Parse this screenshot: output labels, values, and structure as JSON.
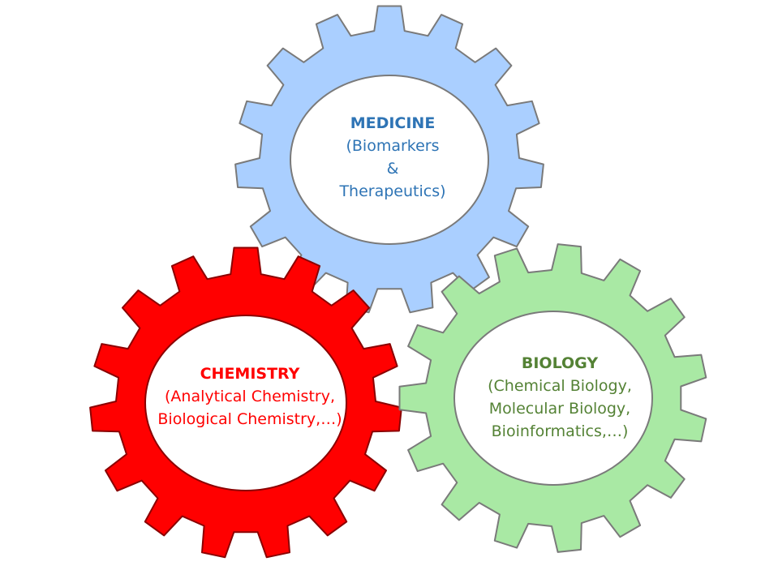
{
  "colors": {
    "medicine_fill": "#aacfff",
    "medicine_text": "#2e74b5",
    "chemistry_fill": "#ff0000",
    "chemistry_text": "#ff0000",
    "biology_fill": "#a9e9a4",
    "biology_text": "#548235",
    "gear_stroke": "#7a7a7a",
    "hub_fill": "#ffffff"
  },
  "gears": {
    "medicine": {
      "title": "MEDICINE",
      "lines": [
        "(Biomarkers",
        "&",
        "Therapeutics)"
      ]
    },
    "chemistry": {
      "title": "CHEMISTRY",
      "lines": [
        "(Analytical Chemistry,",
        "Biological Chemistry,…)"
      ]
    },
    "biology": {
      "title": "BIOLOGY",
      "lines": [
        "(Chemical Biology,",
        "Molecular Biology,",
        "Bioinformatics,…)"
      ]
    }
  }
}
